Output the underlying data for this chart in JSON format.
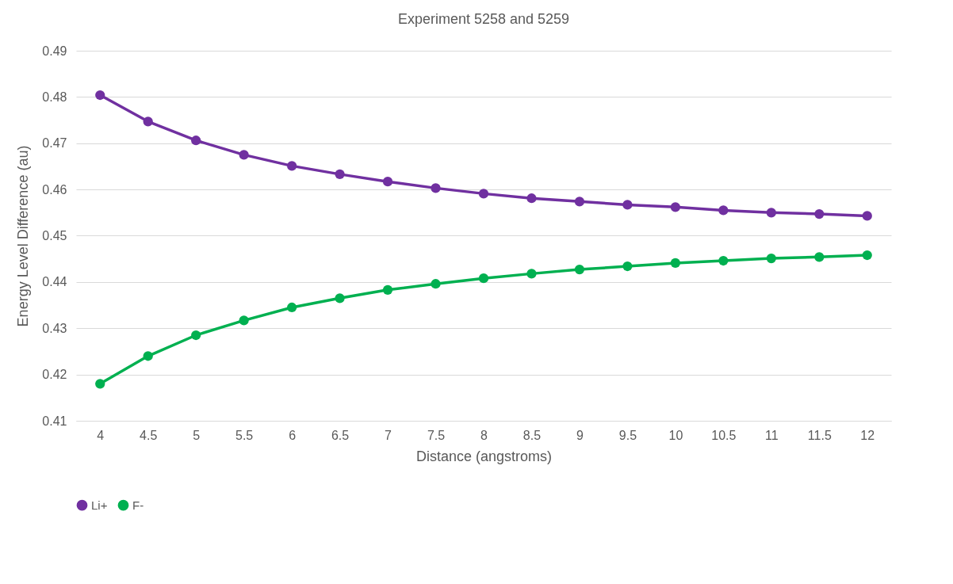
{
  "chart_data": {
    "type": "line",
    "title": "Experiment 5258 and 5259",
    "xlabel": "Distance (angstroms)",
    "ylabel": "Energy Level Difference (au)",
    "categories": [
      "4",
      "4.5",
      "5",
      "5.5",
      "6",
      "6.5",
      "7",
      "7.5",
      "8",
      "8.5",
      "9",
      "9.5",
      "10",
      "10.5",
      "11",
      "11.5",
      "12"
    ],
    "series": [
      {
        "name": "Li+",
        "color": "#7030a0",
        "values": [
          0.4804,
          0.4747,
          0.4706,
          0.4675,
          0.4651,
          0.4633,
          0.4617,
          0.4603,
          0.4591,
          0.4581,
          0.4574,
          0.4567,
          0.4562,
          0.4555,
          0.455,
          0.4547,
          0.4543
        ]
      },
      {
        "name": "F-",
        "color": "#00b050",
        "values": [
          0.418,
          0.424,
          0.4285,
          0.4317,
          0.4345,
          0.4365,
          0.4383,
          0.4396,
          0.4408,
          0.4418,
          0.4427,
          0.4434,
          0.4441,
          0.4446,
          0.4451,
          0.4454,
          0.4458
        ]
      }
    ],
    "ylim": [
      0.41,
      0.49
    ],
    "yticks": [
      0.41,
      0.42,
      0.43,
      0.44,
      0.45,
      0.46,
      0.47,
      0.48,
      0.49
    ],
    "grid": "y",
    "legend": "bottom",
    "marker": "circle",
    "line_style": "solid"
  }
}
